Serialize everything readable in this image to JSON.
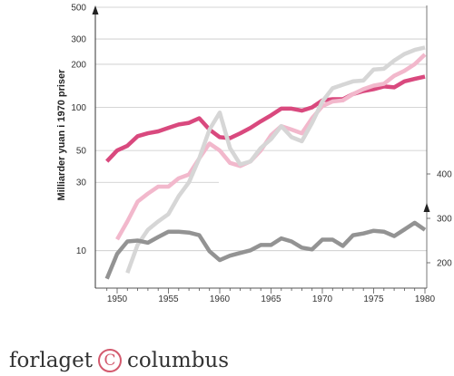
{
  "chart_data": {
    "type": "line",
    "ylabel": "Milliarder yuan i 1970 priser",
    "x_ticks": [
      "1950",
      "1955",
      "1960",
      "1965",
      "1970",
      "1975",
      "1980"
    ],
    "xlim": [
      1948,
      1981
    ],
    "left_axis": {
      "scale": "log",
      "ylim": [
        8,
        500
      ],
      "ticks": [
        "10",
        "30",
        "50",
        "100",
        "200",
        "300",
        "500"
      ],
      "tick_values": [
        10,
        30,
        50,
        100,
        200,
        300,
        500
      ]
    },
    "right_axis": {
      "scale": "linear",
      "ticks": [
        "200",
        "300",
        "400"
      ],
      "tick_values": [
        200,
        300,
        400
      ]
    },
    "series": [
      {
        "color": "#d9497e",
        "axis": "left",
        "x": [
          1949,
          1950,
          1951,
          1952,
          1953,
          1954,
          1955,
          1956,
          1957,
          1958,
          1959,
          1960,
          1961,
          1962,
          1963,
          1964,
          1965,
          1966,
          1967,
          1968,
          1969,
          1970,
          1971,
          1972,
          1973,
          1974,
          1975,
          1976,
          1977,
          1978,
          1979,
          1980
        ],
        "y": [
          42,
          50,
          54,
          63,
          66,
          68,
          72,
          76,
          78,
          84,
          70,
          62,
          61,
          66,
          72,
          80,
          88,
          98,
          98,
          95,
          100,
          112,
          114,
          114,
          124,
          130,
          134,
          140,
          138,
          152,
          158,
          164
        ]
      },
      {
        "color": "#f2b8cc",
        "axis": "left",
        "x": [
          1950,
          1951,
          1952,
          1953,
          1954,
          1955,
          1956,
          1957,
          1958,
          1959,
          1960,
          1961,
          1962,
          1963,
          1964,
          1965,
          1966,
          1967,
          1968,
          1969,
          1970,
          1971,
          1972,
          1973,
          1974,
          1975,
          1976,
          1977,
          1978,
          1979,
          1980
        ],
        "y": [
          12,
          16,
          22,
          25,
          28,
          28,
          32,
          34,
          44,
          56,
          50,
          41,
          39,
          42,
          50,
          64,
          74,
          70,
          66,
          84,
          102,
          110,
          112,
          124,
          134,
          142,
          146,
          166,
          180,
          200,
          234
        ]
      },
      {
        "color": "#d6d6d6",
        "axis": "left",
        "x": [
          1951,
          1952,
          1953,
          1954,
          1955,
          1956,
          1957,
          1958,
          1959,
          1960,
          1961,
          1962,
          1963,
          1964,
          1965,
          1966,
          1967,
          1968,
          1969,
          1970,
          1971,
          1972,
          1973,
          1974,
          1975,
          1976,
          1977,
          1978,
          1979,
          1980
        ],
        "y": [
          7,
          11,
          14,
          16,
          18,
          24,
          30,
          44,
          70,
          92,
          52,
          40,
          42,
          52,
          60,
          74,
          62,
          58,
          78,
          110,
          136,
          144,
          152,
          154,
          184,
          186,
          212,
          236,
          252,
          262
        ]
      },
      {
        "color": "#939393",
        "axis": "right",
        "x": [
          1949,
          1950,
          1951,
          1952,
          1953,
          1954,
          1955,
          1956,
          1957,
          1958,
          1959,
          1960,
          1961,
          1962,
          1963,
          1964,
          1965,
          1966,
          1967,
          1968,
          1969,
          1970,
          1971,
          1972,
          1973,
          1974,
          1975,
          1976,
          1977,
          1978,
          1979,
          1980
        ],
        "y": [
          164,
          220,
          248,
          250,
          245,
          258,
          270,
          270,
          268,
          262,
          226,
          206,
          216,
          222,
          228,
          240,
          240,
          255,
          248,
          234,
          230,
          252,
          252,
          238,
          262,
          266,
          272,
          270,
          260,
          275,
          290,
          274
        ]
      }
    ]
  },
  "brand": {
    "name_left": "forlaget",
    "symbol": "C",
    "name_right": "columbus"
  }
}
